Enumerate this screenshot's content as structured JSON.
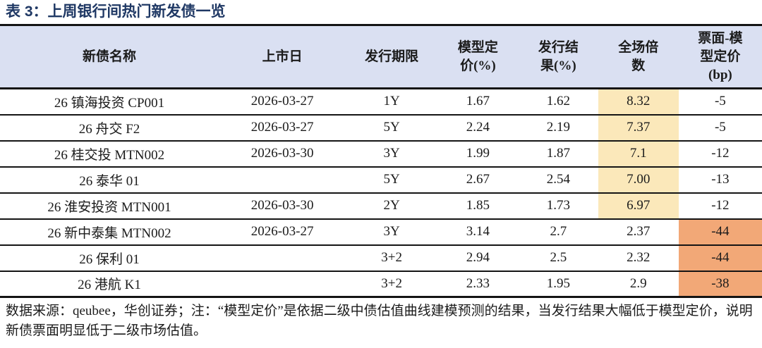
{
  "title": "表 3：上周银行间热门新发债一览",
  "columns": [
    "新债名称",
    "上市日",
    "发行期限",
    "模型定\n价(%)",
    "发行结\n果(%)",
    "全场倍\n数",
    "票面-模\n型定价\n(bp)"
  ],
  "rows": [
    {
      "name": "26 镇海投资 CP001",
      "list_date": "2026-03-27",
      "term": "1Y",
      "model_price": "1.67",
      "issue_result": "1.62",
      "bid_multiple": "8.32",
      "coupon_minus_model": "-5",
      "multiple_highlight": true,
      "spread_highlight": false
    },
    {
      "name": "26 舟交 F2",
      "list_date": "2026-03-27",
      "term": "5Y",
      "model_price": "2.24",
      "issue_result": "2.19",
      "bid_multiple": "7.37",
      "coupon_minus_model": "-5",
      "multiple_highlight": true,
      "spread_highlight": false
    },
    {
      "name": "26 桂交投 MTN002",
      "list_date": "2026-03-30",
      "term": "3Y",
      "model_price": "1.99",
      "issue_result": "1.87",
      "bid_multiple": "7.1",
      "coupon_minus_model": "-12",
      "multiple_highlight": true,
      "spread_highlight": false
    },
    {
      "name": "26 泰华 01",
      "list_date": "",
      "term": "5Y",
      "model_price": "2.67",
      "issue_result": "2.54",
      "bid_multiple": "7.00",
      "coupon_minus_model": "-13",
      "multiple_highlight": true,
      "spread_highlight": false
    },
    {
      "name": "26 淮安投资 MTN001",
      "list_date": "2026-03-30",
      "term": "2Y",
      "model_price": "1.85",
      "issue_result": "1.73",
      "bid_multiple": "6.97",
      "coupon_minus_model": "-12",
      "multiple_highlight": true,
      "spread_highlight": false
    },
    {
      "name": "26 新中泰集 MTN002",
      "list_date": "2026-03-27",
      "term": "3Y",
      "model_price": "3.14",
      "issue_result": "2.7",
      "bid_multiple": "2.37",
      "coupon_minus_model": "-44",
      "multiple_highlight": false,
      "spread_highlight": true
    },
    {
      "name": "26 保利 01",
      "list_date": "",
      "term": "3+2",
      "model_price": "2.94",
      "issue_result": "2.5",
      "bid_multiple": "2.32",
      "coupon_minus_model": "-44",
      "multiple_highlight": false,
      "spread_highlight": true
    },
    {
      "name": "26 港航 K1",
      "list_date": "",
      "term": "3+2",
      "model_price": "2.33",
      "issue_result": "1.95",
      "bid_multiple": "2.9",
      "coupon_minus_model": "-38",
      "multiple_highlight": false,
      "spread_highlight": true
    }
  ],
  "footnote": "数据来源：qeubee，华创证券；注：“模型定价”是依据二级中债估值曲线建模预测的结果，当发行结果大幅低于模型定价，说明新债票面明显低于二级市场估值。",
  "colors": {
    "title": "#1F3864",
    "header_bg": "#DAE0F2",
    "high_multiple_highlight": "#FBE8BA",
    "negative_spread_highlight": "#F2A877",
    "border": "#141414"
  }
}
